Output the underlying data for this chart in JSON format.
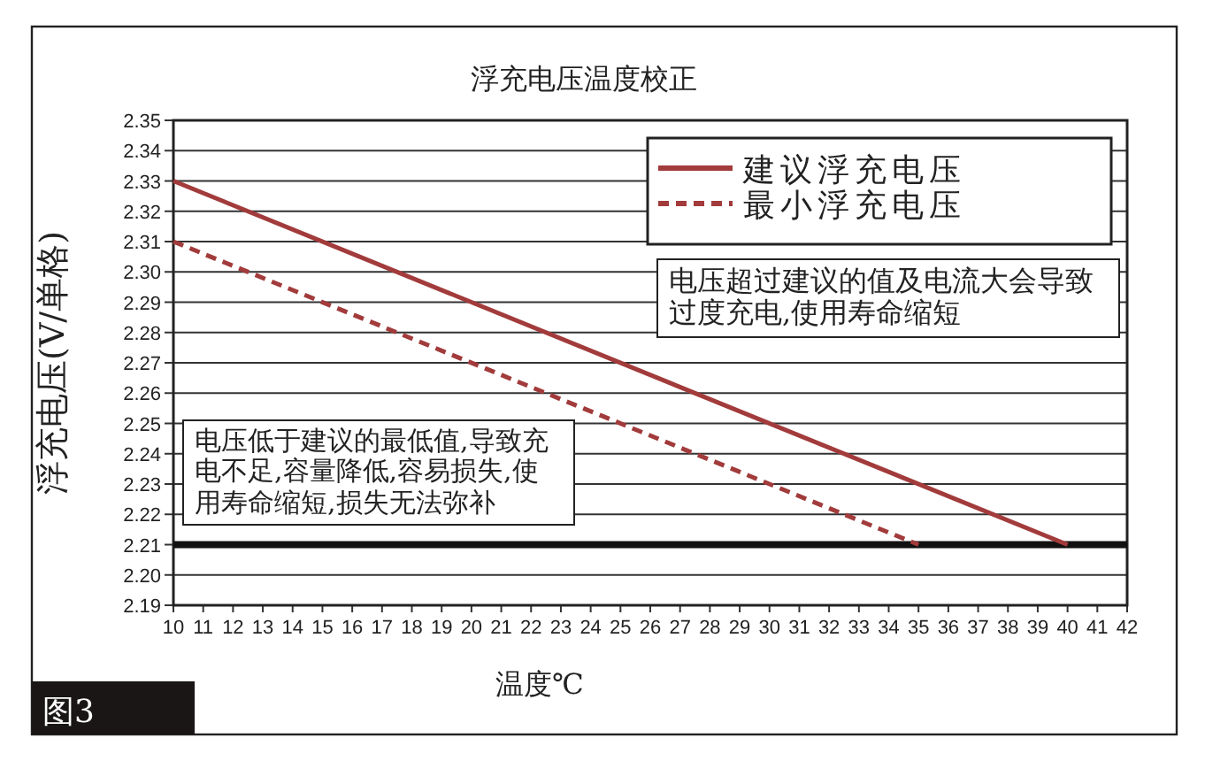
{
  "chart_data": {
    "type": "line",
    "title": "浮充电压温度校正",
    "xlabel": "温度℃",
    "ylabel": "浮充电压(V/单格)",
    "series": [
      {
        "name": "建议浮充电压",
        "color": "#a23b3b",
        "line_style": "solid",
        "x": [
          10,
          40
        ],
        "values": [
          2.33,
          2.21
        ]
      },
      {
        "name": "最小浮充电压",
        "color": "#a23b3b",
        "line_style": "dashed",
        "x": [
          10,
          35
        ],
        "values": [
          2.31,
          2.21
        ]
      }
    ],
    "xlim": [
      10,
      42
    ],
    "xticks": [
      10,
      11,
      12,
      13,
      14,
      15,
      16,
      17,
      18,
      19,
      20,
      21,
      22,
      23,
      24,
      25,
      26,
      27,
      28,
      29,
      30,
      31,
      32,
      33,
      34,
      35,
      36,
      37,
      38,
      39,
      40,
      41,
      42
    ],
    "ylim": [
      2.19,
      2.35
    ],
    "yticks": [
      2.19,
      {
        "value": 2.2,
        "label": "2.20"
      },
      2.21,
      2.22,
      2.23,
      2.24,
      2.25,
      2.26,
      2.27,
      2.28,
      2.29,
      {
        "value": 2.3,
        "label": "2.30"
      },
      2.31,
      2.32,
      2.33,
      2.34,
      2.35
    ],
    "grid": "y",
    "legend": "top right",
    "marker": "none",
    "ref_lines": [
      {
        "axis": "y",
        "value": 2.21,
        "color": "#111111",
        "line_style": "solid"
      }
    ],
    "annotations": [
      "电压低于建议的最低值,导致充电不足,容量降低,容易损失,使用寿命缩短,损失无法弥补",
      "电压超过建议的值及电流大会导致过度充电,使用寿命缩短",
      "图3"
    ]
  }
}
